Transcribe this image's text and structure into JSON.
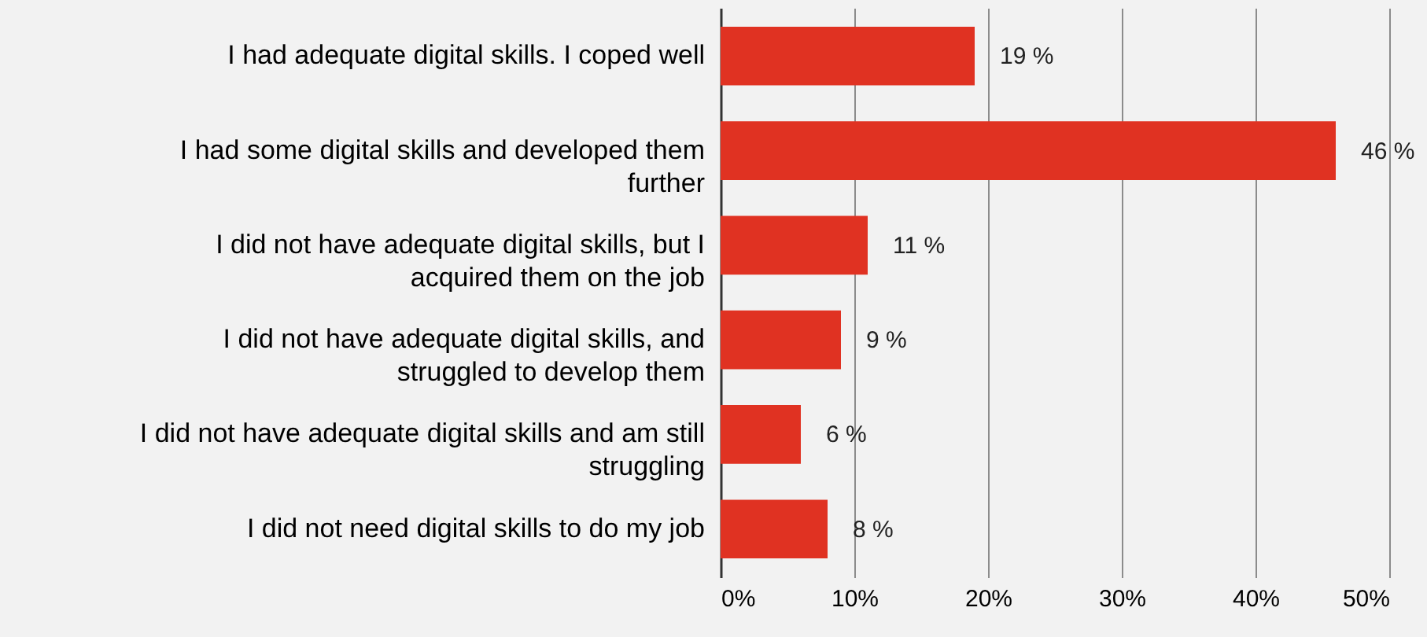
{
  "chart_data": {
    "type": "bar",
    "orientation": "horizontal",
    "categories": [
      "I had adequate digital skills. I coped well",
      "I had some digital skills and developed them further",
      "I did not have adequate digital skills, but I acquired them on the job",
      "I did not have adequate digital skills, and struggled to develop them",
      "I did not have adequate digital skills and am still struggling",
      "I did not need digital skills to do my job"
    ],
    "values": [
      19,
      46,
      11,
      9,
      6,
      8
    ],
    "value_labels": [
      "19 %",
      "46 %",
      "11 %",
      "9 %",
      "6 %",
      "8 %"
    ],
    "color": "#e03222",
    "xlim": [
      0,
      50
    ],
    "xticks": [
      {
        "value": 0,
        "label": "0%"
      },
      {
        "value": 10,
        "label": "10%"
      },
      {
        "value": 20,
        "label": "20%"
      },
      {
        "value": 30,
        "label": "30%"
      },
      {
        "value": 40,
        "label": "40%"
      },
      {
        "value": 50,
        "label": "50%"
      }
    ],
    "grid": "x"
  }
}
